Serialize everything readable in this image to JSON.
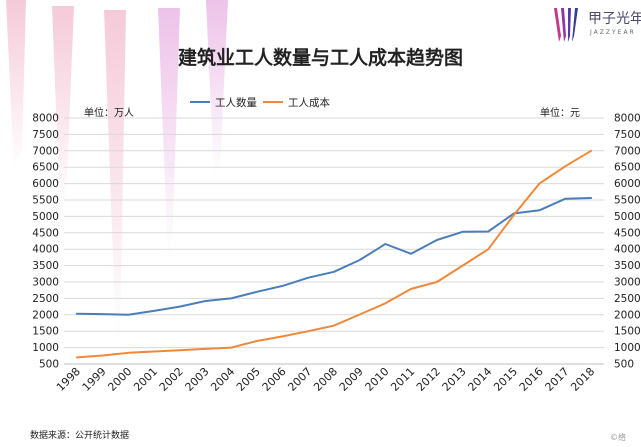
{
  "brand": {
    "name": "甲子光年",
    "sub": "JAZZYEAR"
  },
  "source_note": "数据来源：公开统计数据",
  "watermark": "©络",
  "colors": {
    "series1": "#4a7ebb",
    "series2": "#f0883a",
    "decor": "#e8a0c8"
  },
  "chart_data": {
    "type": "line",
    "title": "建筑业工人数量与工人成本趋势图",
    "unit_left": "单位：万人",
    "unit_right": "单位：元",
    "x": [
      "1998",
      "1999",
      "2000",
      "2001",
      "2002",
      "2003",
      "2004",
      "2005",
      "2006",
      "2007",
      "2008",
      "2009",
      "2010",
      "2011",
      "2012",
      "2013",
      "2014",
      "2015",
      "2016",
      "2017",
      "2018"
    ],
    "y_ticks": [
      500,
      1000,
      1500,
      2000,
      2500,
      3000,
      3500,
      4000,
      4500,
      5000,
      5500,
      6000,
      6500,
      7000,
      7500,
      8000
    ],
    "ylim": [
      500,
      8000
    ],
    "grid": true,
    "legend_position": "top",
    "series": [
      {
        "name": "工人数量",
        "axis": "left",
        "values": [
          2030,
          2020,
          2000,
          2120,
          2250,
          2420,
          2500,
          2700,
          2880,
          3130,
          3310,
          3670,
          4160,
          3860,
          4280,
          4530,
          4540,
          5090,
          5190,
          5540,
          5560
        ]
      },
      {
        "name": "工人成本",
        "axis": "right",
        "values": [
          700,
          760,
          840,
          880,
          920,
          960,
          1000,
          1200,
          1340,
          1500,
          1670,
          2010,
          2350,
          2790,
          3000,
          3500,
          4000,
          5050,
          6010,
          6530,
          7000
        ]
      }
    ]
  }
}
